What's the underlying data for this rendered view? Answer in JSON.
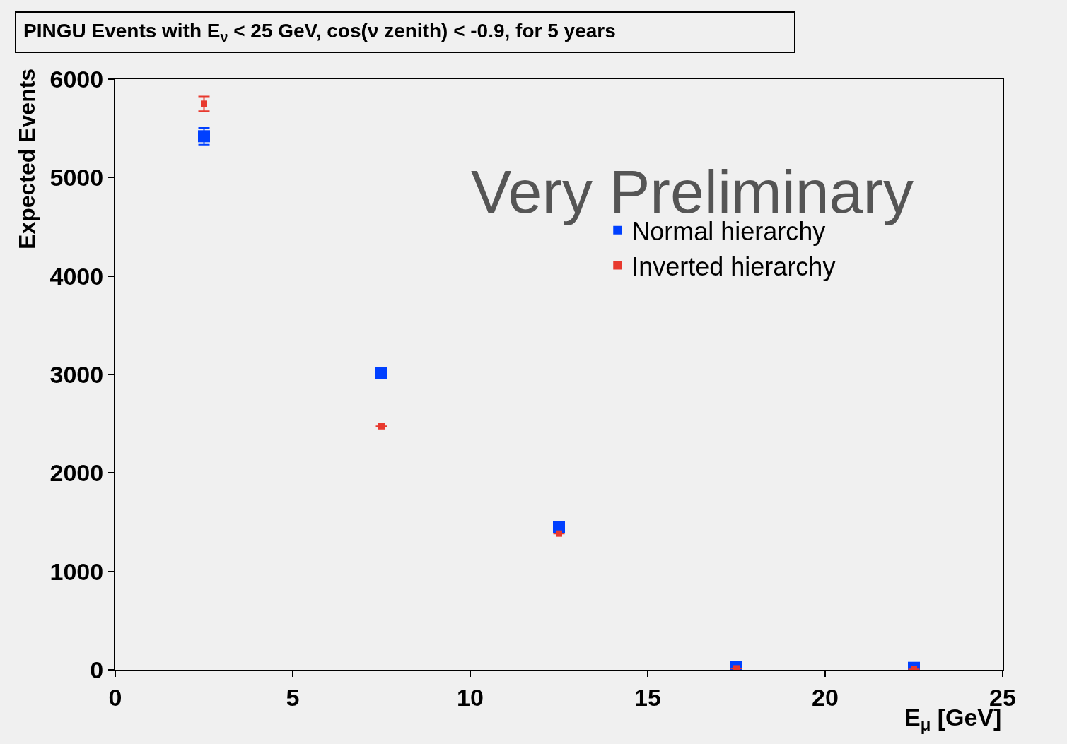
{
  "chart_data": {
    "type": "scatter",
    "title": "PINGU Events with E$_{ν}$ < 25 GeV, cos(ν zenith) < -0.9, for 5 years",
    "xlabel": "E$_{μ}$ [GeV]",
    "ylabel": "Expected Events",
    "x": [
      2.5,
      7.5,
      12.5,
      17.5,
      22.5
    ],
    "series": [
      {
        "name": "Normal hierarchy",
        "color": "#0040ff",
        "values": [
          5420,
          3015,
          1448,
          30,
          20
        ],
        "errors": [
          85,
          null,
          null,
          null,
          null
        ]
      },
      {
        "name": "Inverted hierarchy",
        "color": "#e8392e",
        "values": [
          5750,
          2474,
          1384,
          15,
          5
        ],
        "errors": [
          75,
          null,
          null,
          null,
          null
        ]
      }
    ],
    "xlim": [
      0,
      25
    ],
    "xticks": [
      0,
      5,
      10,
      15,
      20,
      25
    ],
    "ylim": [
      0,
      6000
    ],
    "yticks": [
      0,
      1000,
      2000,
      3000,
      4000,
      5000,
      6000
    ],
    "grid": false,
    "legend": "top right",
    "marker": "square",
    "annotations": [
      "Very Preliminary"
    ]
  }
}
